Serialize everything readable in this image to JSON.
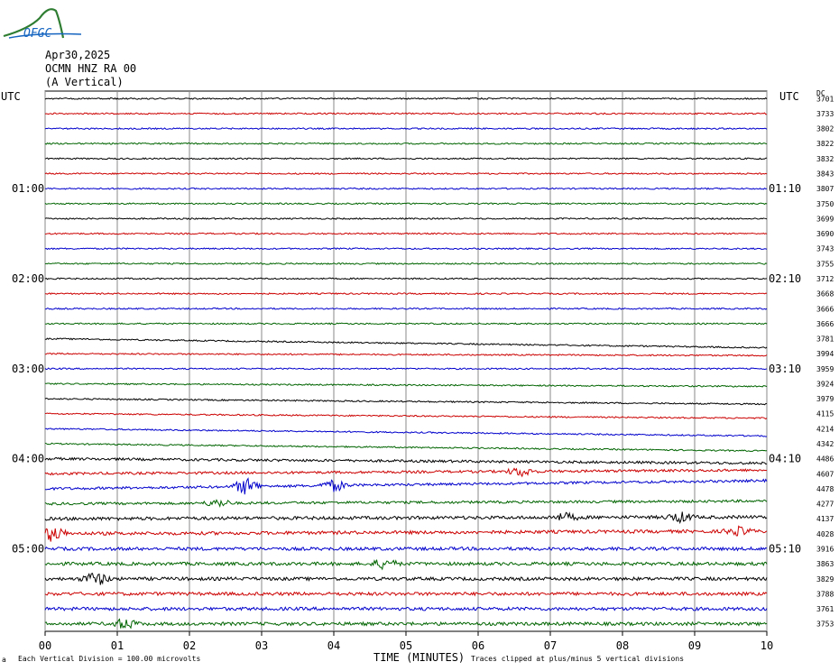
{
  "logo": {
    "text": "OFGC",
    "name": "ofgc-logo"
  },
  "header": {
    "date": "Apr30,2025",
    "station": "OCMN HNZ RA 00",
    "component": "(A Vertical)"
  },
  "utc_left": "UTC",
  "utc_right": "UTC",
  "dc_label": "DC",
  "footer": {
    "scale_note": "Each Vertical Division =  100.00 microvolts",
    "clip_note": "Traces clipped at plus/minus 5 vertical divisions",
    "corner_mark": "a"
  },
  "chart_data": {
    "type": "line",
    "title": "",
    "xlabel": "TIME (MINUTES)",
    "ylabel": "",
    "xlim": [
      0,
      10
    ],
    "x_ticks": [
      "00",
      "01",
      "02",
      "03",
      "04",
      "05",
      "06",
      "07",
      "08",
      "09",
      "10"
    ],
    "grid": true,
    "trace_colors": [
      "#000000",
      "#cc0000",
      "#0000cc",
      "#006400"
    ],
    "left_time_labels": [
      {
        "row": 6,
        "label": "01:00"
      },
      {
        "row": 12,
        "label": "02:00"
      },
      {
        "row": 18,
        "label": "03:00"
      },
      {
        "row": 24,
        "label": "04:00"
      },
      {
        "row": 30,
        "label": "05:00"
      }
    ],
    "right_time_labels": [
      {
        "row": 6,
        "label": "01:10"
      },
      {
        "row": 12,
        "label": "02:10"
      },
      {
        "row": 18,
        "label": "03:10"
      },
      {
        "row": 24,
        "label": "04:10"
      },
      {
        "row": 30,
        "label": "05:10"
      }
    ],
    "dc_values": [
      "3701",
      "3733",
      "3802",
      "3822",
      "3832",
      "3843",
      "3807",
      "3750",
      "3699",
      "3690",
      "3743",
      "3755",
      "3712",
      "3668",
      "3666",
      "3666",
      "3781",
      "3994",
      "3959",
      "3924",
      "3979",
      "4115",
      "4214",
      "4342",
      "4486",
      "4607",
      "4478",
      "4277",
      "4137",
      "4028",
      "3916",
      "3863",
      "3829",
      "3788",
      "3761",
      "3753"
    ]
  }
}
